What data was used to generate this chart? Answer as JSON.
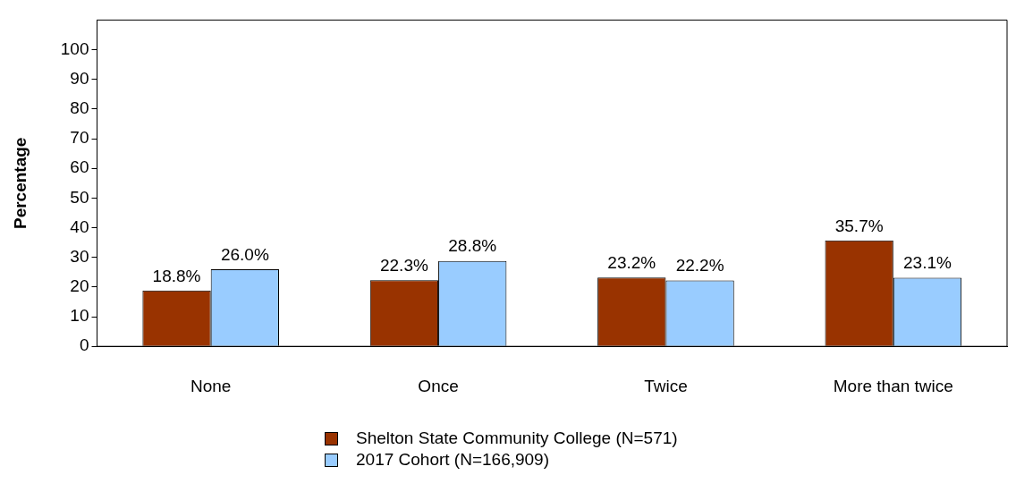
{
  "chart_data": {
    "type": "bar",
    "ylabel": "Percentage",
    "categories": [
      "None",
      "Once",
      "Twice",
      "More than twice"
    ],
    "series": [
      {
        "name": "Shelton State Community College (N=571)",
        "color": "#993300",
        "values": [
          18.8,
          22.3,
          23.2,
          35.7
        ],
        "value_labels": [
          "18.8%",
          "22.3%",
          "23.2%",
          "35.7%"
        ]
      },
      {
        "name": "2017 Cohort (N=166,909)",
        "color": "#99ccff",
        "values": [
          26.0,
          28.8,
          22.2,
          23.1
        ],
        "value_labels": [
          "26.0%",
          "28.8%",
          "22.2%",
          "23.1%"
        ]
      }
    ],
    "ylim": [
      0,
      110
    ],
    "yticks": [
      0,
      10,
      20,
      30,
      40,
      50,
      60,
      70,
      80,
      90,
      100
    ],
    "grid": false,
    "legend": "bottom"
  }
}
